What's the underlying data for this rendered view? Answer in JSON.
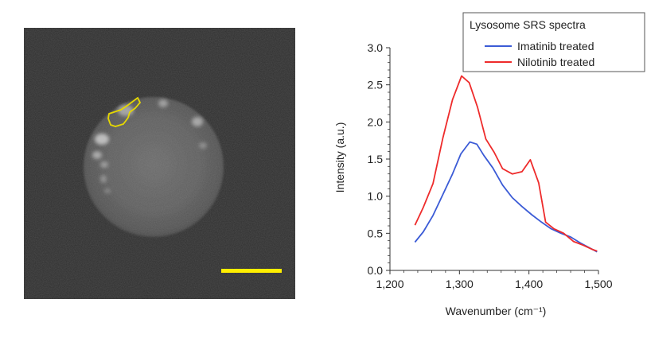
{
  "micrograph": {
    "scale_bar_color": "#ffee00",
    "roi_outline_color": "#e6d800"
  },
  "chart_data": {
    "type": "line",
    "title": "",
    "legend_title": "Lysosome SRS spectra",
    "legend_position": "top-right",
    "xlabel": "Wavenumber (cm⁻¹)",
    "ylabel": "Intensity (a.u.)",
    "xlim": [
      1200,
      1500
    ],
    "ylim": [
      0,
      3.0
    ],
    "xticks": [
      1200,
      1300,
      1400,
      1500
    ],
    "xtick_labels": [
      "1,200",
      "1,300",
      "1,400",
      "1,500"
    ],
    "yticks": [
      0,
      0.5,
      1.0,
      1.5,
      2.0,
      2.5,
      3.0
    ],
    "ytick_labels": [
      "0.0",
      "0.5",
      "1.0",
      "1.5",
      "2.0",
      "2.5",
      "3.0"
    ],
    "grid": false,
    "series": [
      {
        "name": "Imatinib treated",
        "color": "#3b5bd6",
        "x": [
          1236,
          1248,
          1262,
          1276,
          1290,
          1302,
          1315,
          1325,
          1335,
          1348,
          1362,
          1376,
          1390,
          1404,
          1418,
          1432,
          1446,
          1460,
          1474,
          1488,
          1498
        ],
        "y": [
          0.38,
          0.52,
          0.74,
          1.02,
          1.3,
          1.57,
          1.73,
          1.7,
          1.55,
          1.38,
          1.15,
          0.98,
          0.86,
          0.75,
          0.65,
          0.56,
          0.5,
          0.45,
          0.37,
          0.3,
          0.25
        ]
      },
      {
        "name": "Nilotinib treated",
        "color": "#ee2b2b",
        "x": [
          1236,
          1248,
          1262,
          1276,
          1290,
          1303,
          1314,
          1326,
          1338,
          1350,
          1362,
          1376,
          1390,
          1402,
          1414,
          1424,
          1436,
          1450,
          1464,
          1478,
          1492,
          1498
        ],
        "y": [
          0.61,
          0.85,
          1.17,
          1.78,
          2.3,
          2.62,
          2.53,
          2.2,
          1.77,
          1.59,
          1.37,
          1.3,
          1.33,
          1.49,
          1.18,
          0.65,
          0.56,
          0.5,
          0.39,
          0.34,
          0.28,
          0.26
        ]
      }
    ]
  }
}
